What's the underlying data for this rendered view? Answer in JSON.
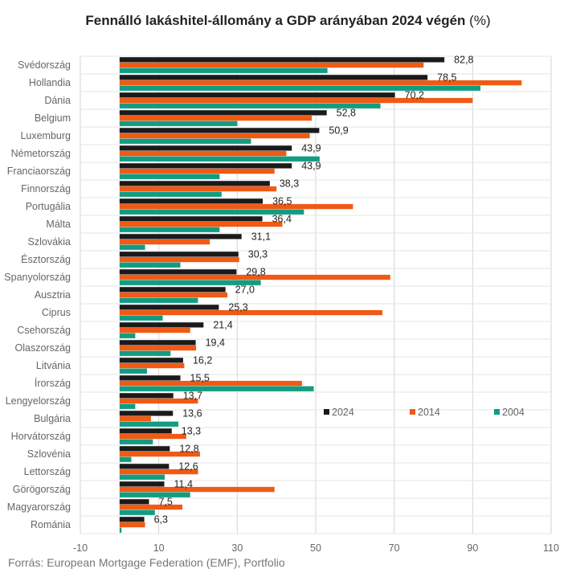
{
  "chart_data": {
    "type": "bar",
    "orientation": "horizontal",
    "title": "Fennálló lakáshitel-állomány a GDP arányában 2024 végén",
    "title_unit": "(%)",
    "source": "Forrás: European Mortgage Federation (EMF), Portfolio",
    "categories": [
      "Svédország",
      "Hollandia",
      "Dánia",
      "Belgium",
      "Luxemburg",
      "Németország",
      "Franciaország",
      "Finnország",
      "Portugália",
      "Málta",
      "Szlovákia",
      "Észtország",
      "Spanyolország",
      "Ausztria",
      "Ciprus",
      "Csehország",
      "Olaszország",
      "Litvánia",
      "Írország",
      "Lengyelország",
      "Bulgária",
      "Horvátország",
      "Szlovénia",
      "Lettország",
      "Görögország",
      "Magyarország",
      "Románia"
    ],
    "series": [
      {
        "name": "2024",
        "color": "#1a1a1a",
        "values": [
          82.8,
          78.5,
          70.2,
          52.8,
          50.9,
          43.9,
          43.9,
          38.3,
          36.5,
          36.4,
          31.1,
          30.3,
          29.8,
          27.0,
          25.3,
          21.4,
          19.4,
          16.2,
          15.5,
          13.7,
          13.6,
          13.3,
          12.8,
          12.6,
          11.4,
          7.5,
          6.3
        ],
        "labels": [
          "82,8",
          "78,5",
          "70,2",
          "52,8",
          "50,9",
          "43,9",
          "43,9",
          "38,3",
          "36,5",
          "36,4",
          "31,1",
          "30,3",
          "29,8",
          "27,0",
          "25,3",
          "21,4",
          "19,4",
          "16,2",
          "15,5",
          "13,7",
          "13,6",
          "13,3",
          "12,8",
          "12,6",
          "11,4",
          "7,5",
          "6,3"
        ]
      },
      {
        "name": "2014",
        "color": "#f05a14",
        "values": [
          77.5,
          102.5,
          90,
          49,
          48.5,
          42.5,
          39.5,
          40,
          59.5,
          41.5,
          23,
          30.5,
          69,
          27.5,
          67,
          18,
          19.5,
          16.5,
          46.5,
          20,
          8,
          17,
          20.5,
          20,
          39.5,
          16,
          6.5
        ]
      },
      {
        "name": "2004",
        "color": "#129c82",
        "values": [
          53,
          92,
          66.5,
          30,
          33.5,
          51,
          25.5,
          26,
          47,
          25.5,
          6.5,
          15.5,
          36,
          20,
          11,
          4,
          13,
          7,
          49.5,
          4,
          15,
          8.5,
          3,
          11.5,
          18,
          9,
          0.5
        ]
      }
    ],
    "x_ticks": [
      "-10",
      "10",
      "30",
      "50",
      "70",
      "90",
      "110"
    ],
    "xlim": [
      -10,
      110
    ],
    "grid": true,
    "legend": "inside-right"
  }
}
